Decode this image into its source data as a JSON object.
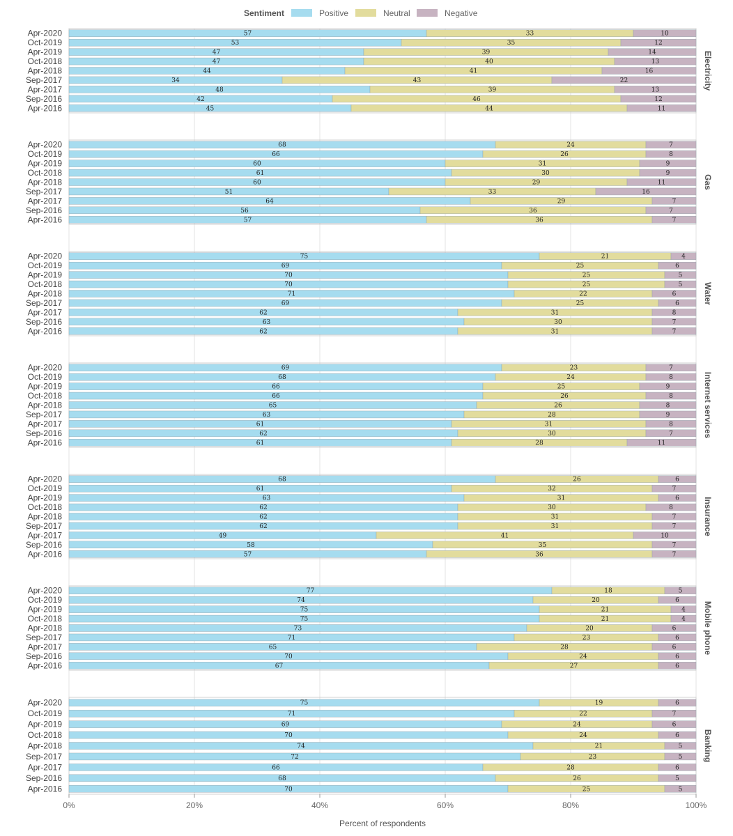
{
  "chart_data": {
    "type": "bar",
    "orientation": "horizontal",
    "stacked": true,
    "legend": {
      "title": "Sentiment",
      "position": "top",
      "entries": [
        {
          "name": "Positive",
          "color": "#a6dcef"
        },
        {
          "name": "Neutral",
          "color": "#e2dc9d"
        },
        {
          "name": "Negative",
          "color": "#c7b3c1"
        }
      ]
    },
    "xlabel": "Percent of respondents",
    "xlim": [
      0,
      100
    ],
    "xticks": [
      "0%",
      "20%",
      "40%",
      "60%",
      "80%",
      "100%"
    ],
    "grid": true,
    "categories": [
      "Apr-2020",
      "Oct-2019",
      "Apr-2019",
      "Oct-2018",
      "Apr-2018",
      "Sep-2017",
      "Apr-2017",
      "Sep-2016",
      "Apr-2016"
    ],
    "facets": [
      {
        "name": "Electricity",
        "positive": [
          57,
          53,
          47,
          47,
          44,
          34,
          48,
          42,
          45
        ],
        "neutral": [
          33,
          35,
          39,
          40,
          41,
          43,
          39,
          46,
          44
        ],
        "negative": [
          10,
          12,
          14,
          13,
          16,
          22,
          13,
          12,
          11
        ]
      },
      {
        "name": "Gas",
        "positive": [
          68,
          66,
          60,
          61,
          60,
          51,
          64,
          56,
          57
        ],
        "neutral": [
          24,
          26,
          31,
          30,
          29,
          33,
          29,
          36,
          36
        ],
        "negative": [
          7,
          8,
          9,
          9,
          11,
          16,
          7,
          7,
          7
        ]
      },
      {
        "name": "Water",
        "positive": [
          75,
          69,
          70,
          70,
          71,
          69,
          62,
          63,
          62
        ],
        "neutral": [
          21,
          25,
          25,
          25,
          22,
          25,
          31,
          30,
          31
        ],
        "negative": [
          4,
          6,
          5,
          5,
          6,
          6,
          8,
          7,
          7
        ]
      },
      {
        "name": "Internet services",
        "positive": [
          69,
          68,
          66,
          66,
          65,
          63,
          61,
          62,
          61
        ],
        "neutral": [
          23,
          24,
          25,
          26,
          26,
          28,
          31,
          30,
          28
        ],
        "negative": [
          7,
          8,
          9,
          8,
          8,
          9,
          8,
          7,
          11
        ]
      },
      {
        "name": "Insurance",
        "positive": [
          68,
          61,
          63,
          62,
          62,
          62,
          49,
          58,
          57
        ],
        "neutral": [
          26,
          32,
          31,
          30,
          31,
          31,
          41,
          35,
          36
        ],
        "negative": [
          6,
          7,
          6,
          8,
          7,
          7,
          10,
          7,
          7
        ]
      },
      {
        "name": "Mobile phone",
        "positive": [
          77,
          74,
          75,
          75,
          73,
          71,
          65,
          70,
          67
        ],
        "neutral": [
          18,
          20,
          21,
          21,
          20,
          23,
          28,
          24,
          27
        ],
        "negative": [
          5,
          6,
          4,
          4,
          6,
          6,
          6,
          6,
          6
        ]
      },
      {
        "name": "Banking",
        "positive": [
          75,
          71,
          69,
          70,
          74,
          72,
          66,
          68,
          70
        ],
        "neutral": [
          19,
          22,
          24,
          24,
          21,
          23,
          28,
          26,
          25
        ],
        "negative": [
          6,
          7,
          6,
          6,
          5,
          5,
          6,
          5,
          5
        ]
      }
    ]
  }
}
